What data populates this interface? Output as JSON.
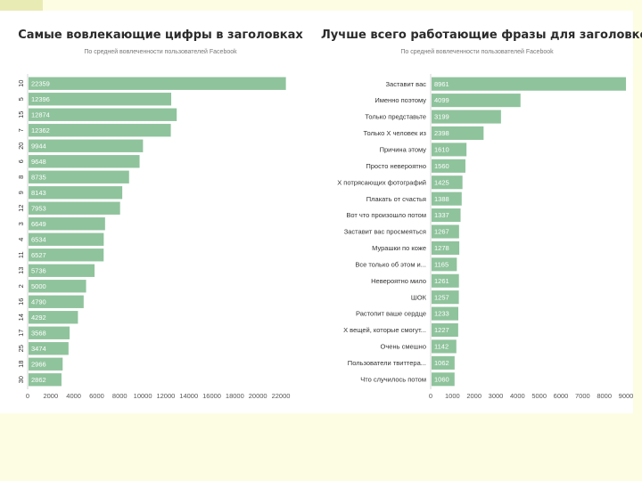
{
  "chart_data": [
    {
      "type": "bar",
      "orientation": "horizontal",
      "title": "Самые вовлекающие цифры в заголовках",
      "subtitle": "По средней вовлеченности пользователей Facebook",
      "color": "#8fc39c",
      "categories": [
        "10",
        "5",
        "15",
        "7",
        "20",
        "6",
        "8",
        "9",
        "12",
        "3",
        "4",
        "11",
        "13",
        "2",
        "16",
        "14",
        "17",
        "25",
        "18",
        "30"
      ],
      "values": [
        22359,
        12396,
        12874,
        12362,
        9944,
        9648,
        8735,
        8143,
        7953,
        6649,
        6534,
        6527,
        5736,
        5000,
        4790,
        4292,
        3568,
        3474,
        2966,
        2862
      ],
      "value_labels": [
        "22359",
        "12396",
        "12874",
        "12362",
        "9944",
        "9648",
        "8735",
        "8143",
        "7953",
        "6649",
        "6534",
        "6527",
        "5736",
        "5000",
        "4790",
        "4292",
        "3568",
        "3474",
        "2966",
        "2862"
      ],
      "xlim": [
        0,
        22000
      ],
      "xticks": [
        "0",
        "2000",
        "4000",
        "6000",
        "8000",
        "10000",
        "12000",
        "14000",
        "16000",
        "18000",
        "20000",
        "22000"
      ]
    },
    {
      "type": "bar",
      "orientation": "horizontal",
      "title": "Лучше всего работающие фразы для заголовков",
      "subtitle": "По средней вовлеченности пользователей Facebook",
      "color": "#8fc39c",
      "categories": [
        "Заставит вас",
        "Именно поэтому",
        "Только представьте",
        "Только X человек из",
        "Причина этому",
        "Просто невероятно",
        "X потрясающих фотографий",
        "Плакать от счастья",
        "Вот что произошло потом",
        "Заставит вас просмеяться",
        "Мурашки по коже",
        "Все только об этом и...",
        "Невероятно мило",
        "ШОК",
        "Растопит ваше сердце",
        "X вещей, которые смогут...",
        "Очень смешно",
        "Пользователи твиттера...",
        "Что случилось потом"
      ],
      "values": [
        8961,
        4099,
        3199,
        2398,
        1610,
        1560,
        1425,
        1388,
        1337,
        1267,
        1278,
        1165,
        1261,
        1257,
        1233,
        1227,
        1142,
        1062,
        1060
      ],
      "value_labels": [
        "8961",
        "4099",
        "3199",
        "2398",
        "1610",
        "1560",
        "1425",
        "1388",
        "1337",
        "1267",
        "1278",
        "1165",
        "1261",
        "1257",
        "1233",
        "1227",
        "1142",
        "1062",
        "1060"
      ],
      "xlim": [
        0,
        9000
      ],
      "xticks": [
        "0",
        "1000",
        "2000",
        "3000",
        "4000",
        "5000",
        "6000",
        "7000",
        "8000",
        "9000"
      ]
    }
  ]
}
